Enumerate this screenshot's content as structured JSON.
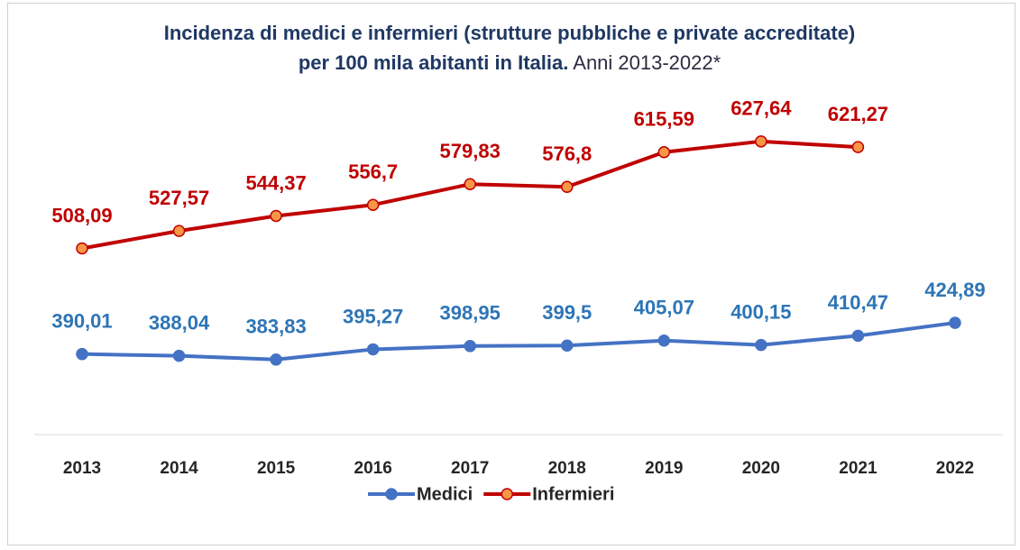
{
  "chart_data": {
    "type": "line",
    "title": "Incidenza di medici e infermieri (strutture pubbliche e private accreditate) per 100 mila abitanti in Italia.",
    "subtitle": "Anni 2013-2022*",
    "categories": [
      "2013",
      "2014",
      "2015",
      "2016",
      "2017",
      "2018",
      "2019",
      "2020",
      "2021",
      "2022"
    ],
    "series": [
      {
        "name": "Medici",
        "color": "#4472c4",
        "marker_fill": "#4472c4",
        "label_color": "#2e75b6",
        "values": [
          390.01,
          388.04,
          383.83,
          395.27,
          398.95,
          399.5,
          405.07,
          400.15,
          410.47,
          424.89
        ],
        "value_labels": [
          "390,01",
          "388,04",
          "383,83",
          "395,27",
          "398,95",
          "399,5",
          "405,07",
          "400,15",
          "410,47",
          "424,89"
        ]
      },
      {
        "name": "Infermieri",
        "color": "#c00000",
        "marker_fill": "#f79646",
        "label_color": "#c00000",
        "values": [
          508.09,
          527.57,
          544.37,
          556.7,
          579.83,
          576.8,
          615.59,
          627.64,
          621.27,
          null
        ],
        "value_labels": [
          "508,09",
          "527,57",
          "544,37",
          "556,7",
          "579,83",
          "576,8",
          "615,59",
          "627,64",
          "621,27",
          null
        ]
      }
    ],
    "ylim": [
      300,
      700
    ],
    "legend": "bottom"
  }
}
